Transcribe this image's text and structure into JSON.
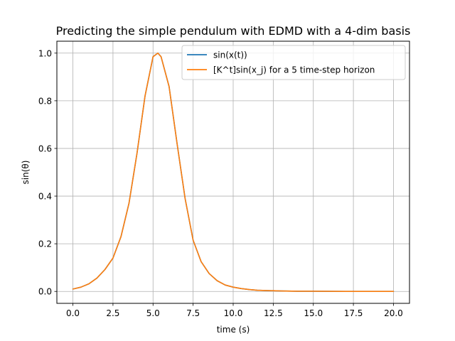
{
  "chart_data": {
    "type": "line",
    "title": "Predicting the simple pendulum with EDMD with a 4-dim basis",
    "xlabel": "time (s)",
    "ylabel": "sin(θ)",
    "xlim": [
      -1.0,
      21.0
    ],
    "ylim": [
      -0.05,
      1.05
    ],
    "grid": true,
    "legend_position": "upper-right",
    "xticks": [
      0,
      2.5,
      5,
      7.5,
      10,
      12.5,
      15,
      17.5,
      20
    ],
    "xtick_labels": [
      "0.0",
      "2.5",
      "5.0",
      "7.5",
      "10.0",
      "12.5",
      "15.0",
      "17.5",
      "20.0"
    ],
    "yticks": [
      0,
      0.2,
      0.4,
      0.6,
      0.8,
      1.0
    ],
    "ytick_labels": [
      "0.0",
      "0.2",
      "0.4",
      "0.6",
      "0.8",
      "1.0"
    ],
    "series": [
      {
        "name": "sin(x(t))",
        "color": "#1f77b4",
        "x": [
          0,
          0.5,
          1.0,
          1.5,
          2.0,
          2.5,
          3.0,
          3.5,
          4.0,
          4.5,
          5.0,
          5.3,
          5.5,
          6.0,
          6.5,
          7.0,
          7.5,
          8.0,
          8.5,
          9.0,
          9.5,
          10.0,
          10.5,
          11.0,
          11.5,
          12.0,
          12.5,
          13.0,
          14.0,
          15.0,
          16.0,
          17.0,
          18.0,
          19.0,
          20.0
        ],
        "y": [
          0.01,
          0.018,
          0.032,
          0.056,
          0.092,
          0.14,
          0.23,
          0.37,
          0.58,
          0.82,
          0.985,
          1.0,
          0.985,
          0.86,
          0.62,
          0.39,
          0.215,
          0.125,
          0.075,
          0.045,
          0.027,
          0.018,
          0.012,
          0.008,
          0.005,
          0.004,
          0.003,
          0.002,
          0.001,
          0.001,
          0.0005,
          0.0,
          0.0,
          0.0,
          0.0
        ]
      },
      {
        "name": "[K^t]sin(x_j) for a 5 time-step horizon",
        "color": "#ff7f0e",
        "x": [
          0,
          0.5,
          1.0,
          1.5,
          2.0,
          2.5,
          3.0,
          3.5,
          4.0,
          4.5,
          5.0,
          5.3,
          5.5,
          6.0,
          6.5,
          7.0,
          7.5,
          8.0,
          8.5,
          9.0,
          9.5,
          10.0,
          10.5,
          11.0,
          11.5,
          12.0,
          12.5,
          13.0,
          14.0,
          15.0,
          16.0,
          17.0,
          18.0,
          19.0,
          20.0
        ],
        "y": [
          0.01,
          0.018,
          0.032,
          0.056,
          0.092,
          0.14,
          0.23,
          0.37,
          0.58,
          0.82,
          0.985,
          1.0,
          0.985,
          0.86,
          0.62,
          0.39,
          0.215,
          0.125,
          0.075,
          0.045,
          0.027,
          0.018,
          0.012,
          0.008,
          0.005,
          0.004,
          0.003,
          0.002,
          0.001,
          0.001,
          0.0005,
          0.0,
          0.0,
          0.0,
          0.0
        ]
      }
    ]
  }
}
